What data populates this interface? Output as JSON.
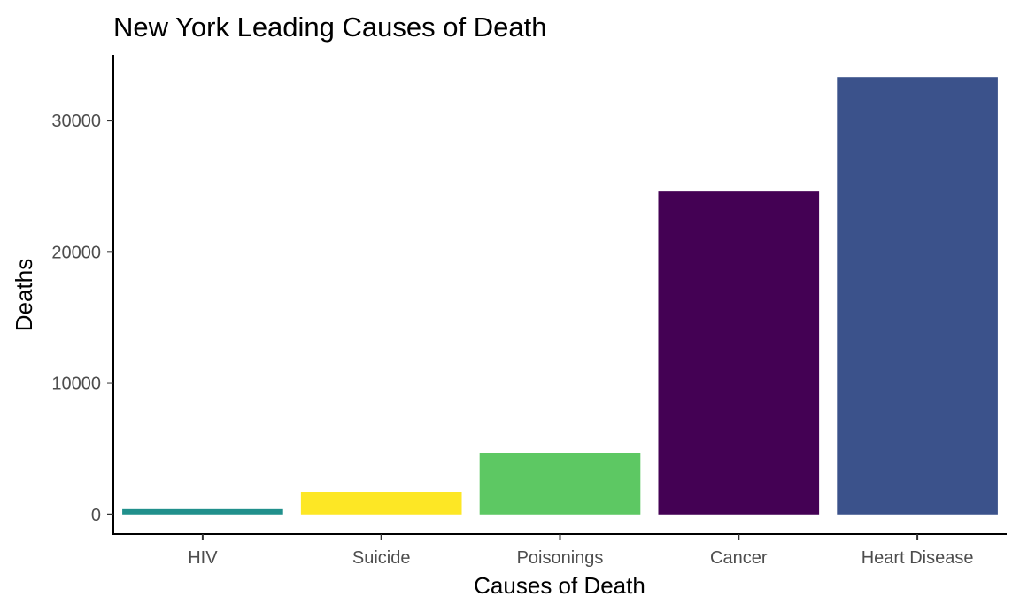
{
  "chart_data": {
    "type": "bar",
    "title": "New York Leading Causes of Death",
    "xlabel": "Causes of Death",
    "ylabel": "Deaths",
    "categories": [
      "HIV",
      "Suicide",
      "Poisonings",
      "Cancer",
      "Heart Disease"
    ],
    "values": [
      400,
      1700,
      4700,
      24600,
      33300
    ],
    "colors": [
      "#21908C",
      "#FDE725",
      "#5DC863",
      "#440154",
      "#3B528B"
    ],
    "ylim": [
      -1500,
      35000
    ],
    "yticks": [
      0,
      10000,
      20000,
      30000
    ],
    "ytick_labels": [
      "0",
      "10000",
      "20000",
      "30000"
    ],
    "grid": false,
    "legend": "none"
  }
}
